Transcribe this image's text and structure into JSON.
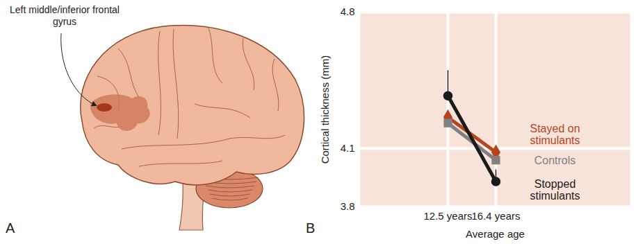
{
  "panel_a": {
    "panel_label": "A",
    "annotation": "Left middle/inferior frontal gyrus"
  },
  "chart_data": {
    "type": "line",
    "panel_label": "B",
    "x_label": "Average age",
    "y_label": "Cortical thickness (mm)",
    "categories": [
      "12.5 years",
      "16.4 years"
    ],
    "ylim": [
      3.8,
      4.8
    ],
    "yticks": [
      3.8,
      4.1,
      4.8
    ],
    "grid": true,
    "series": [
      {
        "name": "Stayed on stimulants",
        "color": "#b4451f",
        "marker": "diamond",
        "values": [
          4.26,
          4.08
        ]
      },
      {
        "name": "Controls",
        "color": "#808080",
        "marker": "square",
        "values": [
          4.23,
          4.04
        ]
      },
      {
        "name": "Stopped stimulants",
        "color": "#1a1a1a",
        "marker": "circle",
        "values": [
          4.37,
          3.93
        ],
        "error_upper": [
          0.13,
          0.06
        ]
      }
    ]
  }
}
